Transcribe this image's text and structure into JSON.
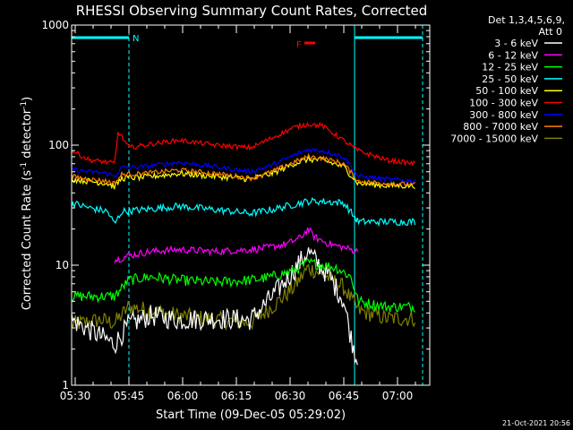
{
  "chart_data": {
    "type": "line",
    "title": "RHESSI Observing Summary Count Rates, Corrected",
    "xlabel": "Start Time (09-Dec-05 05:29:02)",
    "ylabel": "Corrected Count Rate (s⁻¹ detector⁻¹)",
    "ylabel_main": "Corrected Count Rate (s",
    "ylabel_sup1": "-1",
    "ylabel_mid": " detector",
    "ylabel_sup2": "-1",
    "ylabel_end": ")",
    "y_scale": "log",
    "ylim": [
      1,
      1000
    ],
    "xlim": [
      0,
      100
    ],
    "x_ticks": [
      {
        "label": "05:30",
        "t": 1
      },
      {
        "label": "05:45",
        "t": 16
      },
      {
        "label": "06:00",
        "t": 31
      },
      {
        "label": "06:15",
        "t": 46
      },
      {
        "label": "06:30",
        "t": 61
      },
      {
        "label": "06:45",
        "t": 76
      },
      {
        "label": "07:00",
        "t": 91
      }
    ],
    "y_ticks": [
      {
        "label": "1",
        "v": 1
      },
      {
        "label": "10",
        "v": 10
      },
      {
        "label": "100",
        "v": 100
      },
      {
        "label": "1000",
        "v": 1000
      }
    ],
    "legend_header": [
      "Det 1,3,4,5,6,9,",
      "Att 0"
    ],
    "legend_position": "right",
    "annotations": {
      "night_marker": "N",
      "flare_marker": "F",
      "night_intervals": [
        [
          0,
          16
        ],
        [
          79,
          98
        ]
      ],
      "flare_interval": [
        65,
        68
      ]
    },
    "timestamp": "21-Oct-2021 20:56",
    "series": [
      {
        "name": "3 - 6 keV",
        "color": "#ffffff",
        "x": [
          0,
          12,
          16,
          22,
          30,
          40,
          50,
          56,
          62,
          66,
          68,
          72,
          76,
          78,
          80
        ],
        "y": [
          3.5,
          2.2,
          3.2,
          3.8,
          3.5,
          3.6,
          3.5,
          5.5,
          9,
          13,
          11,
          8,
          5,
          2.5,
          1.5
        ]
      },
      {
        "name": "6 - 12 keV",
        "color": "#ff00ff",
        "x": [
          12,
          16,
          22,
          30,
          40,
          50,
          55,
          60,
          64,
          66,
          68,
          72,
          76,
          80
        ],
        "y": [
          11,
          12,
          13,
          13.5,
          13,
          13.5,
          14,
          15,
          17,
          20,
          17,
          15,
          14,
          13
        ]
      },
      {
        "name": "12 - 25 keV",
        "color": "#00ff00",
        "x": [
          0,
          12,
          16,
          22,
          30,
          40,
          50,
          56,
          62,
          66,
          70,
          74,
          78,
          80,
          88,
          96
        ],
        "y": [
          5.5,
          5.5,
          7.5,
          8,
          7.5,
          7.2,
          7.5,
          8,
          9,
          10.5,
          10,
          9.5,
          8,
          5,
          4.5,
          4.5
        ]
      },
      {
        "name": "25 - 50 keV",
        "color": "#00ffff",
        "x": [
          0,
          5,
          10,
          12,
          14,
          20,
          30,
          40,
          50,
          56,
          62,
          66,
          70,
          76,
          80,
          88,
          96
        ],
        "y": [
          33,
          30,
          28,
          22,
          28,
          29,
          31,
          29,
          27,
          29,
          32,
          34,
          34,
          33,
          23,
          23,
          23
        ]
      },
      {
        "name": "50 - 100 keV",
        "color": "#ffff00",
        "x": [
          0,
          5,
          10,
          12,
          14,
          20,
          30,
          40,
          50,
          56,
          62,
          66,
          70,
          76,
          80,
          88,
          96
        ],
        "y": [
          52,
          50,
          48,
          45,
          53,
          54,
          58,
          55,
          52,
          58,
          70,
          76,
          75,
          66,
          48,
          46,
          46
        ]
      },
      {
        "name": "100 - 300 keV",
        "color": "#ff0000",
        "x": [
          0,
          5,
          10,
          12,
          13,
          16,
          22,
          30,
          40,
          50,
          56,
          62,
          66,
          70,
          74,
          80,
          88,
          96
        ],
        "y": [
          90,
          75,
          72,
          70,
          130,
          95,
          102,
          110,
          100,
          95,
          115,
          140,
          150,
          145,
          120,
          90,
          75,
          70
        ]
      },
      {
        "name": "300 - 800 keV",
        "color": "#0000ff",
        "x": [
          0,
          5,
          10,
          12,
          14,
          20,
          30,
          40,
          50,
          56,
          62,
          66,
          70,
          76,
          80,
          88,
          96
        ],
        "y": [
          63,
          60,
          58,
          55,
          65,
          66,
          72,
          66,
          60,
          68,
          82,
          92,
          90,
          80,
          55,
          52,
          50
        ]
      },
      {
        "name": "800 - 7000 keV",
        "color": "#ff8000",
        "x": [
          0,
          5,
          10,
          12,
          14,
          20,
          30,
          40,
          50,
          56,
          62,
          66,
          70,
          76,
          80,
          88,
          96
        ],
        "y": [
          55,
          52,
          50,
          48,
          57,
          58,
          62,
          58,
          53,
          60,
          72,
          80,
          78,
          70,
          50,
          48,
          47
        ]
      },
      {
        "name": "7000 - 15000 keV",
        "color": "#808000",
        "x": [
          0,
          8,
          12,
          16,
          22,
          30,
          40,
          50,
          56,
          62,
          66,
          70,
          76,
          80,
          88,
          96
        ],
        "y": [
          3.2,
          3.5,
          3.3,
          4.5,
          4.2,
          3.8,
          3.5,
          3.3,
          4.5,
          6.5,
          9.5,
          8.5,
          6.5,
          4.2,
          3.6,
          3.6
        ]
      }
    ]
  }
}
